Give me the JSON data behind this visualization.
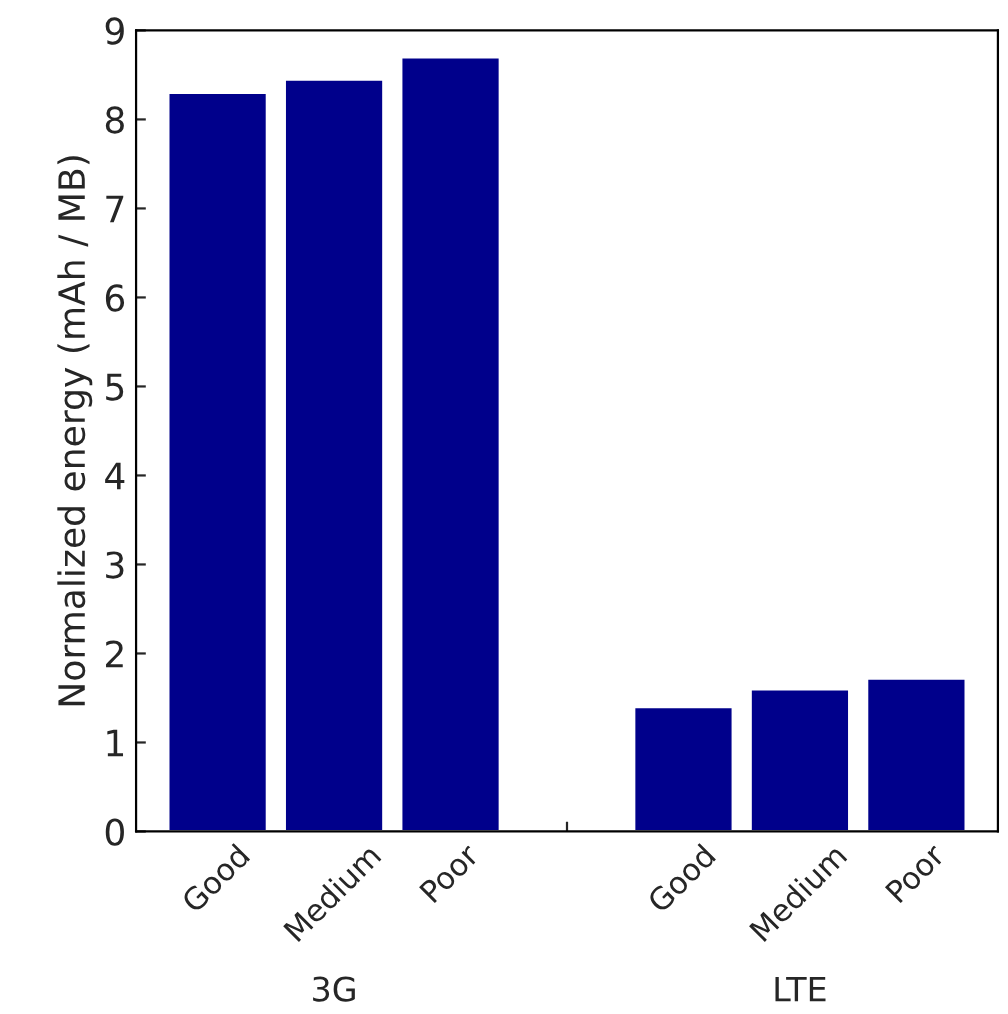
{
  "chart_data": {
    "type": "bar",
    "categories": [
      "Good",
      "Medium",
      "Poor",
      null,
      "Good",
      "Medium",
      "Poor"
    ],
    "values": [
      8.3,
      8.45,
      8.7,
      null,
      1.4,
      1.6,
      1.72
    ],
    "color": "#00008b",
    "ylabel": "Normalized energy (mAh / MB)",
    "ylim": [
      0,
      9
    ],
    "yticks": [
      0,
      1,
      2,
      3,
      4,
      5,
      6,
      7,
      8,
      9
    ],
    "annotations": [
      "3G",
      "LTE"
    ],
    "grid": false,
    "legend": false
  }
}
